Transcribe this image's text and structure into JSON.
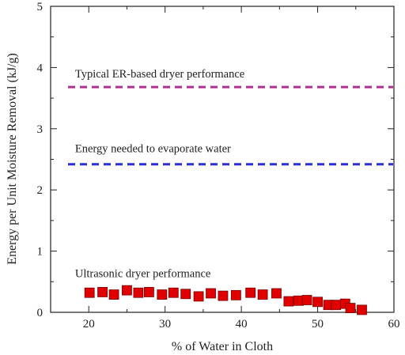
{
  "chart_data": {
    "type": "scatter",
    "xlabel": "% of Water in Cloth",
    "ylabel": "Energy per Unit Moisture Removal (kJ/g)",
    "xlim": [
      15,
      60
    ],
    "ylim": [
      0,
      5
    ],
    "x_ticks": [
      "20",
      "30",
      "40",
      "50",
      "60"
    ],
    "y_ticks": [
      "0",
      "1",
      "2",
      "3",
      "4",
      "5"
    ],
    "grid": false,
    "reference_lines": [
      {
        "label": "Typical ER-based dryer performance",
        "y": 3.68,
        "color": "#b0308f",
        "label_x": 18.2,
        "label_y": 3.9
      },
      {
        "label": "Energy needed to evaporate water",
        "y": 2.42,
        "color": "#2a2fd6",
        "label_x": 18.2,
        "label_y": 2.68
      }
    ],
    "annotations": [
      {
        "text": "Ultrasonic  dryer performance",
        "x": 18.2,
        "y": 0.64
      }
    ],
    "series": [
      {
        "color": "#e00000",
        "marker": "square",
        "points": [
          {
            "x": 20.1,
            "y": 0.32
          },
          {
            "x": 21.8,
            "y": 0.33
          },
          {
            "x": 23.3,
            "y": 0.29
          },
          {
            "x": 25.0,
            "y": 0.36
          },
          {
            "x": 26.5,
            "y": 0.32
          },
          {
            "x": 27.9,
            "y": 0.33
          },
          {
            "x": 29.6,
            "y": 0.29
          },
          {
            "x": 31.1,
            "y": 0.32
          },
          {
            "x": 32.7,
            "y": 0.3
          },
          {
            "x": 34.4,
            "y": 0.26
          },
          {
            "x": 36.0,
            "y": 0.31
          },
          {
            "x": 37.6,
            "y": 0.27
          },
          {
            "x": 39.3,
            "y": 0.28
          },
          {
            "x": 41.2,
            "y": 0.32
          },
          {
            "x": 42.8,
            "y": 0.29
          },
          {
            "x": 44.6,
            "y": 0.31
          },
          {
            "x": 46.2,
            "y": 0.18
          },
          {
            "x": 47.5,
            "y": 0.19
          },
          {
            "x": 48.6,
            "y": 0.2
          },
          {
            "x": 50.0,
            "y": 0.17
          },
          {
            "x": 51.4,
            "y": 0.12
          },
          {
            "x": 52.4,
            "y": 0.12
          },
          {
            "x": 53.6,
            "y": 0.14
          },
          {
            "x": 54.3,
            "y": 0.07
          },
          {
            "x": 55.8,
            "y": 0.04
          }
        ]
      }
    ]
  }
}
